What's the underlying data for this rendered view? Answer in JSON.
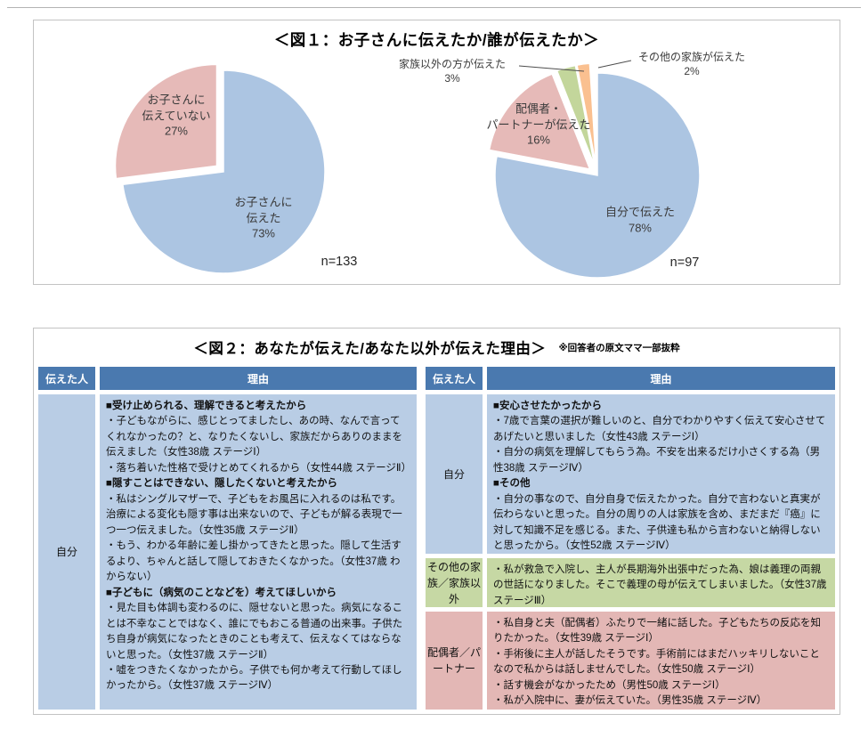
{
  "figure1": {
    "title": "＜図１：お子さんに伝えたか/誰が伝えたか＞",
    "chart_data": [
      {
        "type": "pie",
        "n": "n=133",
        "legend_position": "none",
        "slices": [
          {
            "label": "お子さんに伝えた",
            "value": 73,
            "color": "#acc5e2",
            "exploded": false,
            "display": "お子さんに\n伝えた\n73%"
          },
          {
            "label": "お子さんに伝えていない",
            "value": 27,
            "color": "#e6bab8",
            "exploded": true,
            "display": "お子さんに\n伝えていない\n27%"
          }
        ]
      },
      {
        "type": "pie",
        "n": "n=97",
        "legend_position": "none",
        "slices": [
          {
            "label": "自分で伝えた",
            "value": 78,
            "color": "#acc5e2",
            "exploded": false,
            "display": "自分で伝えた\n78%"
          },
          {
            "label": "配偶者・パートナーが伝えた",
            "value": 16,
            "color": "#e6bab8",
            "exploded": true,
            "display": "配偶者・\nパートナーが伝えた\n16%"
          },
          {
            "label": "家族以外の方が伝えた",
            "value": 3,
            "color": "#c3d69b",
            "exploded": true,
            "display": "家族以外の方が伝えた\n3%"
          },
          {
            "label": "その他の家族が伝えた",
            "value": 2,
            "color": "#fac090",
            "exploded": true,
            "display": "その他の家族が伝えた\n2%"
          }
        ]
      }
    ]
  },
  "figure2": {
    "title": "＜図２：あなたが伝えた/あなた以外が伝えた理由＞",
    "note": "※回答者の原文ママ一部抜粋",
    "headers": {
      "who": "伝えた人",
      "reason": "理由"
    },
    "colors": {
      "header": "#4a79af",
      "self": "#b9cde5",
      "other_family": "#c6d8a4",
      "partner": "#e3b7b5"
    },
    "left_rows": [
      {
        "who": "自分",
        "paras": [
          {
            "bold": true,
            "text": "■受け止められる、理解できると考えたから"
          },
          {
            "bold": false,
            "text": "・子どもながらに、感じとってましたし、あの時、なんで言ってくれなかったの？と、なりたくないし、家族だからありのままを伝えました（女性38歳 ステージⅠ）"
          },
          {
            "bold": false,
            "text": "・落ち着いた性格で受けとめてくれるから（女性44歳 ステージⅡ）"
          },
          {
            "bold": true,
            "text": "■隠すことはできない、隠したくないと考えたから"
          },
          {
            "bold": false,
            "text": "・私はシングルマザーで、子どもをお風呂に入れるのは私です。治療による変化も隠す事は出来ないので、子どもが解る表現で一つ一つ伝えました。（女性35歳 ステージⅡ）"
          },
          {
            "bold": false,
            "text": "・もう、わかる年齢に差し掛かってきたと思った。隠して生活するより、ちゃんと話して隠しておきたくなかった。（女性37歳 わからない）"
          },
          {
            "bold": true,
            "text": "■子どもに（病気のことなどを）考えてほしいから"
          },
          {
            "bold": false,
            "text": "・見た目も体調も変わるのに、隠せないと思った。病気になることは不幸なことではなく、誰にでもおこる普通の出来事。子供たち自身が病気になったときのことも考えて、伝えなくてはならないと思った。（女性37歳 ステージⅡ）"
          },
          {
            "bold": false,
            "text": "・嘘をつきたくなかったから。子供でも何か考えて行動してほしかったから。（女性37歳 ステージⅣ）"
          }
        ]
      }
    ],
    "right_rows": [
      {
        "who": "自分",
        "paras": [
          {
            "bold": true,
            "text": "■安心させたかったから"
          },
          {
            "bold": false,
            "text": "・7歳で言葉の選択が難しいのと、自分でわかりやすく伝えて安心させてあげたいと思いました（女性43歳 ステージⅠ）"
          },
          {
            "bold": false,
            "text": "・自分の病気を理解してもらう為。不安を出来るだけ小さくする為（男性38歳 ステージⅣ）"
          },
          {
            "bold": true,
            "text": "■その他"
          },
          {
            "bold": false,
            "text": "・自分の事なので、自分自身で伝えたかった。自分で言わないと真実が伝わらないと思った。自分の周りの人は家族を含め、まだまだ『癌』に対して知識不足を感じる。また、子供達も私から言わないと納得しないと思ったから。（女性52歳 ステージⅣ）"
          }
        ]
      },
      {
        "who": "その他の家族／家族以外",
        "paras": [
          {
            "bold": false,
            "text": "・私が救急で入院し、主人が長期海外出張中だった為、娘は義理の両親の世話になりました。そこで義理の母が伝えてしまいました。（女性37歳 ステージⅢ）"
          }
        ]
      },
      {
        "who": "配偶者／パートナー",
        "paras": [
          {
            "bold": false,
            "text": "・私自身と夫（配偶者）ふたりで一緒に話した。子どもたちの反応を知りたかった。（女性39歳 ステージⅠ）"
          },
          {
            "bold": false,
            "text": "・手術後に主人が話したそうです。手術前にはまだハッキリしないことなので私からは話しませんでした。（女性50歳 ステージⅠ）"
          },
          {
            "bold": false,
            "text": "・話す機会がなかったため（男性50歳 ステージⅠ）"
          },
          {
            "bold": false,
            "text": "・私が入院中に、妻が伝えていた。（男性35歳 ステージⅣ）"
          }
        ]
      }
    ]
  }
}
